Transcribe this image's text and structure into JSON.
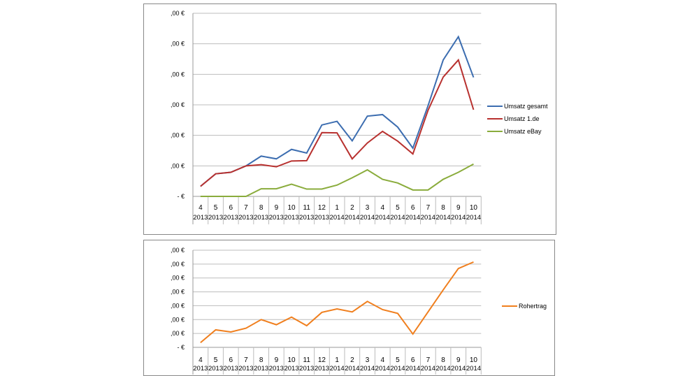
{
  "chart_data": [
    {
      "type": "line",
      "ylim": [
        0,
        6
      ],
      "grid": true,
      "legend": "right",
      "ytick_labels": [
        "-  €",
        ",00 €",
        ",00 €",
        ",00 €",
        ",00 €",
        ",00 €",
        ",00 €"
      ],
      "categories": [
        [
          "4",
          "2013"
        ],
        [
          "5",
          "2013"
        ],
        [
          "6",
          "2013"
        ],
        [
          "7",
          "2013"
        ],
        [
          "8",
          "2013"
        ],
        [
          "9",
          "2013"
        ],
        [
          "10",
          "2013"
        ],
        [
          "11",
          "2013"
        ],
        [
          "12",
          "2013"
        ],
        [
          "1",
          "2014"
        ],
        [
          "2",
          "2014"
        ],
        [
          "3",
          "2014"
        ],
        [
          "4",
          "2014"
        ],
        [
          "5",
          "2014"
        ],
        [
          "6",
          "2014"
        ],
        [
          "7",
          "2014"
        ],
        [
          "8",
          "2014"
        ],
        [
          "9",
          "2014"
        ],
        [
          "10",
          "2014"
        ]
      ],
      "series": [
        {
          "name": "Umsatz gesamt",
          "color": "#3c6db0",
          "values": [
            0.33,
            0.74,
            0.79,
            1.0,
            1.32,
            1.23,
            1.54,
            1.42,
            2.34,
            2.46,
            1.82,
            2.63,
            2.68,
            2.27,
            1.58,
            2.97,
            4.47,
            5.23,
            3.9
          ]
        },
        {
          "name": "Umsatz 1.de",
          "color": "#b8312f",
          "values": [
            0.33,
            0.74,
            0.79,
            1.0,
            1.04,
            0.97,
            1.16,
            1.17,
            2.09,
            2.08,
            1.23,
            1.75,
            2.13,
            1.81,
            1.39,
            2.82,
            3.91,
            4.47,
            2.84
          ]
        },
        {
          "name": "Umsatz eBay",
          "color": "#8aac3c",
          "values": [
            0,
            0,
            0,
            0,
            0.25,
            0.25,
            0.4,
            0.24,
            0.24,
            0.37,
            0.61,
            0.87,
            0.56,
            0.44,
            0.21,
            0.21,
            0.56,
            0.79,
            1.06
          ]
        }
      ]
    },
    {
      "type": "line",
      "ylim": [
        0,
        7
      ],
      "grid": true,
      "legend": "right",
      "ytick_labels": [
        "-  €",
        ",00 €",
        ",00 €",
        ",00 €",
        ",00 €",
        ",00 €",
        ",00 €",
        ",00 €"
      ],
      "categories": [
        [
          "4",
          "2013"
        ],
        [
          "5",
          "2013"
        ],
        [
          "6",
          "2013"
        ],
        [
          "7",
          "2013"
        ],
        [
          "8",
          "2013"
        ],
        [
          "9",
          "2013"
        ],
        [
          "10",
          "2013"
        ],
        [
          "11",
          "2013"
        ],
        [
          "12",
          "2013"
        ],
        [
          "1",
          "2014"
        ],
        [
          "2",
          "2014"
        ],
        [
          "3",
          "2014"
        ],
        [
          "4",
          "2014"
        ],
        [
          "5",
          "2014"
        ],
        [
          "6",
          "2014"
        ],
        [
          "7",
          "2014"
        ],
        [
          "8",
          "2014"
        ],
        [
          "9",
          "2014"
        ],
        [
          "10",
          "2014"
        ]
      ],
      "series": [
        {
          "name": "Rohertrag",
          "color": "#f07f1e",
          "values": [
            0.34,
            1.26,
            1.11,
            1.38,
            2.0,
            1.63,
            2.18,
            1.56,
            2.52,
            2.77,
            2.55,
            3.31,
            2.72,
            2.45,
            0.96,
            2.55,
            4.14,
            5.68,
            6.15
          ]
        }
      ]
    }
  ]
}
